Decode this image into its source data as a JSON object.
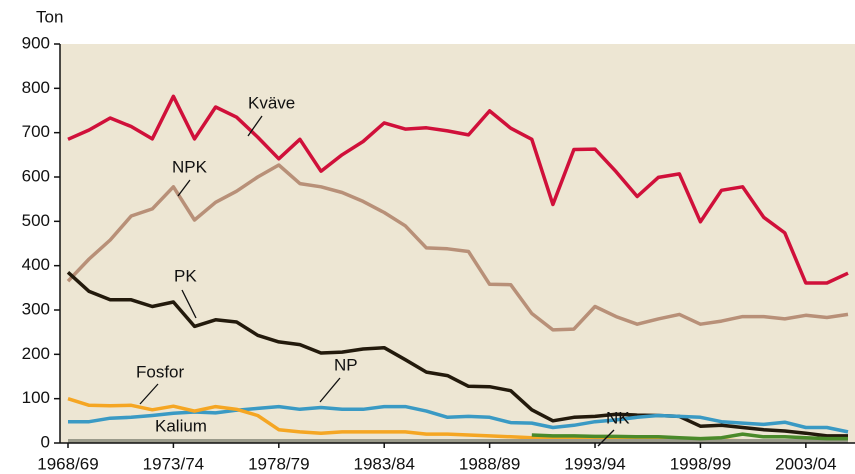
{
  "chart_data": {
    "type": "line",
    "y_label": "Ton",
    "categories": [
      "1968/69",
      null,
      null,
      null,
      null,
      "1973/74",
      null,
      null,
      null,
      null,
      "1978/79",
      null,
      null,
      null,
      null,
      "1983/84",
      null,
      null,
      null,
      null,
      "1988/89",
      null,
      null,
      null,
      null,
      "1993/94",
      null,
      null,
      null,
      null,
      "1998/99",
      null,
      null,
      null,
      null,
      "2003/04",
      null,
      null
    ],
    "ylim": [
      0,
      900
    ],
    "yticks": [
      0,
      100,
      200,
      300,
      400,
      500,
      600,
      700,
      800,
      900
    ],
    "series": [
      {
        "name": "Kväve",
        "color": "#d0103a",
        "values": [
          685,
          706,
          733,
          714,
          686,
          782,
          686,
          758,
          735,
          690,
          641,
          685,
          613,
          650,
          680,
          722,
          708,
          711,
          704,
          695,
          749,
          710,
          685,
          538,
          662,
          663,
          612,
          556,
          599,
          607,
          499,
          570,
          578,
          509,
          474,
          361,
          361,
          383
        ]
      },
      {
        "name": "NPK",
        "color": "#b89078",
        "values": [
          365,
          415,
          458,
          512,
          528,
          578,
          503,
          543,
          568,
          600,
          627,
          585,
          578,
          565,
          545,
          520,
          490,
          440,
          438,
          432,
          358,
          357,
          292,
          255,
          257,
          308,
          285,
          268,
          280,
          290,
          268,
          275,
          285,
          285,
          280,
          288,
          283,
          290
        ]
      },
      {
        "name": "PK",
        "color": "#231a0c",
        "values": [
          385,
          342,
          323,
          323,
          308,
          318,
          263,
          278,
          273,
          243,
          228,
          222,
          203,
          205,
          212,
          215,
          188,
          160,
          152,
          128,
          127,
          118,
          75,
          50,
          58,
          60,
          65,
          63,
          62,
          60,
          38,
          40,
          35,
          30,
          27,
          22,
          16,
          16
        ]
      },
      {
        "name": "NP",
        "color": "#3a9ac4",
        "values": [
          48,
          48,
          56,
          58,
          62,
          67,
          70,
          68,
          74,
          78,
          82,
          76,
          80,
          76,
          76,
          82,
          82,
          72,
          58,
          60,
          58,
          46,
          45,
          35,
          40,
          48,
          52,
          58,
          62,
          60,
          58,
          48,
          45,
          42,
          47,
          35,
          35,
          25
        ]
      },
      {
        "name": "Fosfor",
        "color": "#f5a623",
        "values": [
          100,
          85,
          84,
          85,
          75,
          83,
          72,
          82,
          76,
          62,
          30,
          25,
          22,
          25,
          25,
          25,
          25,
          20,
          20,
          18,
          16,
          14,
          12,
          12,
          10,
          10,
          10,
          8,
          8,
          8,
          6,
          6,
          5,
          5,
          5,
          5,
          5,
          5
        ]
      },
      {
        "name": "Kalium",
        "color": "#9a9a8a",
        "values": [
          5,
          5,
          5,
          5,
          5,
          5,
          5,
          5,
          5,
          5,
          5,
          5,
          5,
          5,
          5,
          5,
          5,
          5,
          5,
          5,
          5,
          5,
          5,
          5,
          5,
          5,
          5,
          5,
          5,
          5,
          5,
          5,
          5,
          5,
          5,
          5,
          5,
          5
        ]
      },
      {
        "name": "NK",
        "color": "#4a8a2a",
        "values": [
          null,
          null,
          null,
          null,
          null,
          null,
          null,
          null,
          null,
          null,
          null,
          null,
          null,
          null,
          null,
          null,
          null,
          null,
          null,
          null,
          null,
          null,
          18,
          16,
          16,
          15,
          15,
          14,
          14,
          12,
          10,
          12,
          20,
          14,
          14,
          12,
          10,
          10
        ]
      }
    ]
  }
}
